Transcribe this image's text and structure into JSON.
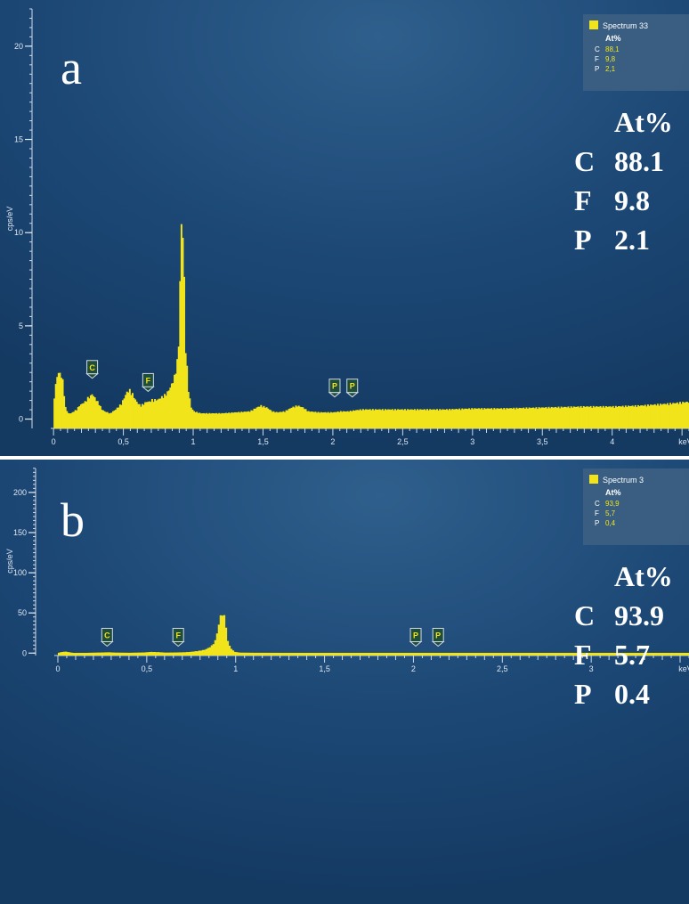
{
  "chart_data": [
    {
      "type": "bar",
      "panel_label": "a",
      "ylabel": "cps/eV",
      "xlabel": "keV",
      "xlim": [
        -0.02,
        4.55
      ],
      "ylim": [
        -0.5,
        22
      ],
      "xticks": [
        0,
        0.5,
        1,
        1.5,
        2,
        2.5,
        3,
        3.5,
        4
      ],
      "xtick_labels": [
        "0",
        "0,5",
        "1",
        "1,5",
        "2",
        "2,5",
        "3",
        "3,5",
        "4"
      ],
      "yticks": [
        0,
        5,
        10,
        15,
        20
      ],
      "ytick_labels": [
        "0",
        "5",
        "10",
        "15",
        "20"
      ],
      "element_markers": [
        {
          "element": "C",
          "x": 0.277,
          "y": 1.9
        },
        {
          "element": "F",
          "x": 0.677,
          "y": 1.2
        },
        {
          "element": "P",
          "x": 2.013,
          "y": 0.9
        },
        {
          "element": "P",
          "x": 2.139,
          "y": 0.9
        }
      ],
      "legend": {
        "spectrum": "Spectrum 33",
        "header": "At%",
        "rows": [
          {
            "element": "C",
            "value": "88,1"
          },
          {
            "element": "F",
            "value": "9,8"
          },
          {
            "element": "P",
            "value": "2,1"
          }
        ]
      },
      "annotation": {
        "header": "At%",
        "rows": [
          {
            "element": "C",
            "value": "88.1"
          },
          {
            "element": "F",
            "value": "9.8"
          },
          {
            "element": "P",
            "value": "2.1"
          }
        ]
      },
      "spectrum_points": [
        [
          0.0,
          1.2
        ],
        [
          0.02,
          2.3
        ],
        [
          0.04,
          2.4
        ],
        [
          0.06,
          2.0
        ],
        [
          0.08,
          0.6
        ],
        [
          0.1,
          0.3
        ],
        [
          0.12,
          0.3
        ],
        [
          0.14,
          0.4
        ],
        [
          0.16,
          0.5
        ],
        [
          0.18,
          0.7
        ],
        [
          0.2,
          0.8
        ],
        [
          0.22,
          0.9
        ],
        [
          0.24,
          1.1
        ],
        [
          0.26,
          1.2
        ],
        [
          0.27,
          1.3
        ],
        [
          0.28,
          1.2
        ],
        [
          0.3,
          1.0
        ],
        [
          0.32,
          0.8
        ],
        [
          0.34,
          0.5
        ],
        [
          0.36,
          0.4
        ],
        [
          0.4,
          0.3
        ],
        [
          0.44,
          0.5
        ],
        [
          0.48,
          0.8
        ],
        [
          0.5,
          1.1
        ],
        [
          0.52,
          1.4
        ],
        [
          0.54,
          1.5
        ],
        [
          0.56,
          1.3
        ],
        [
          0.58,
          1.0
        ],
        [
          0.6,
          0.8
        ],
        [
          0.62,
          0.7
        ],
        [
          0.64,
          0.8
        ],
        [
          0.66,
          0.9
        ],
        [
          0.68,
          0.9
        ],
        [
          0.7,
          1.0
        ],
        [
          0.72,
          1.0
        ],
        [
          0.74,
          1.0
        ],
        [
          0.76,
          1.1
        ],
        [
          0.78,
          1.2
        ],
        [
          0.8,
          1.3
        ],
        [
          0.82,
          1.5
        ],
        [
          0.84,
          1.8
        ],
        [
          0.86,
          2.2
        ],
        [
          0.88,
          3.0
        ],
        [
          0.89,
          3.9
        ],
        [
          0.9,
          7.1
        ],
        [
          0.91,
          10.0
        ],
        [
          0.92,
          9.8
        ],
        [
          0.93,
          7.1
        ],
        [
          0.94,
          3.8
        ],
        [
          0.96,
          1.5
        ],
        [
          0.98,
          0.6
        ],
        [
          1.0,
          0.4
        ],
        [
          1.05,
          0.3
        ],
        [
          1.1,
          0.3
        ],
        [
          1.2,
          0.3
        ],
        [
          1.3,
          0.35
        ],
        [
          1.4,
          0.4
        ],
        [
          1.45,
          0.6
        ],
        [
          1.48,
          0.7
        ],
        [
          1.52,
          0.6
        ],
        [
          1.56,
          0.4
        ],
        [
          1.6,
          0.35
        ],
        [
          1.65,
          0.4
        ],
        [
          1.7,
          0.6
        ],
        [
          1.74,
          0.7
        ],
        [
          1.78,
          0.6
        ],
        [
          1.82,
          0.4
        ],
        [
          1.9,
          0.35
        ],
        [
          2.0,
          0.35
        ],
        [
          2.05,
          0.4
        ],
        [
          2.1,
          0.4
        ],
        [
          2.15,
          0.45
        ],
        [
          2.2,
          0.5
        ],
        [
          2.3,
          0.5
        ],
        [
          2.5,
          0.5
        ],
        [
          2.8,
          0.5
        ],
        [
          3.0,
          0.55
        ],
        [
          3.2,
          0.55
        ],
        [
          3.5,
          0.6
        ],
        [
          3.8,
          0.65
        ],
        [
          4.0,
          0.65
        ],
        [
          4.2,
          0.7
        ],
        [
          4.4,
          0.8
        ],
        [
          4.55,
          0.9
        ]
      ]
    },
    {
      "type": "bar",
      "panel_label": "b",
      "ylabel": "cps/eV",
      "xlabel": "keV",
      "xlim": [
        -0.02,
        3.55
      ],
      "ylim": [
        -3,
        232
      ],
      "xticks": [
        0,
        0.5,
        1,
        1.5,
        2,
        2.5,
        3
      ],
      "xtick_labels": [
        "0",
        "0,5",
        "1",
        "1,5",
        "2",
        "2,5",
        "3"
      ],
      "yticks": [
        0,
        50,
        100,
        150,
        200
      ],
      "ytick_labels": [
        "0",
        "50",
        "100",
        "150",
        "200"
      ],
      "element_markers": [
        {
          "element": "C",
          "x": 0.277,
          "y": 2
        },
        {
          "element": "F",
          "x": 0.677,
          "y": 2
        },
        {
          "element": "P",
          "x": 2.013,
          "y": 2
        },
        {
          "element": "P",
          "x": 2.139,
          "y": 2
        }
      ],
      "legend": {
        "spectrum": "Spectrum 3",
        "header": "At%",
        "rows": [
          {
            "element": "C",
            "value": "93,9"
          },
          {
            "element": "F",
            "value": "5,7"
          },
          {
            "element": "P",
            "value": "0,4"
          }
        ]
      },
      "annotation": {
        "header": "At%",
        "rows": [
          {
            "element": "C",
            "value": "93.9"
          },
          {
            "element": "F",
            "value": "5.7"
          },
          {
            "element": "P",
            "value": "0.4"
          }
        ]
      },
      "spectrum_points": [
        [
          0.0,
          0.5
        ],
        [
          0.02,
          1.5
        ],
        [
          0.04,
          1.8
        ],
        [
          0.06,
          1.0
        ],
        [
          0.08,
          0.3
        ],
        [
          0.15,
          0.3
        ],
        [
          0.25,
          0.8
        ],
        [
          0.28,
          1.0
        ],
        [
          0.32,
          0.6
        ],
        [
          0.4,
          0.4
        ],
        [
          0.48,
          0.8
        ],
        [
          0.52,
          1.5
        ],
        [
          0.56,
          1.2
        ],
        [
          0.6,
          0.6
        ],
        [
          0.66,
          0.8
        ],
        [
          0.7,
          1.0
        ],
        [
          0.74,
          1.5
        ],
        [
          0.78,
          2.5
        ],
        [
          0.82,
          4.0
        ],
        [
          0.84,
          6.0
        ],
        [
          0.86,
          9.0
        ],
        [
          0.88,
          15.0
        ],
        [
          0.9,
          34.0
        ],
        [
          0.91,
          45.0
        ],
        [
          0.92,
          47.0
        ],
        [
          0.93,
          44.0
        ],
        [
          0.94,
          34.0
        ],
        [
          0.95,
          14.0
        ],
        [
          0.97,
          5.0
        ],
        [
          0.99,
          1.5
        ],
        [
          1.02,
          0.6
        ],
        [
          1.1,
          0.4
        ],
        [
          1.3,
          0.3
        ],
        [
          1.5,
          0.3
        ],
        [
          1.8,
          0.3
        ],
        [
          2.0,
          0.3
        ],
        [
          2.2,
          0.3
        ],
        [
          2.6,
          0.3
        ],
        [
          3.0,
          0.3
        ],
        [
          3.55,
          0.3
        ]
      ]
    }
  ]
}
